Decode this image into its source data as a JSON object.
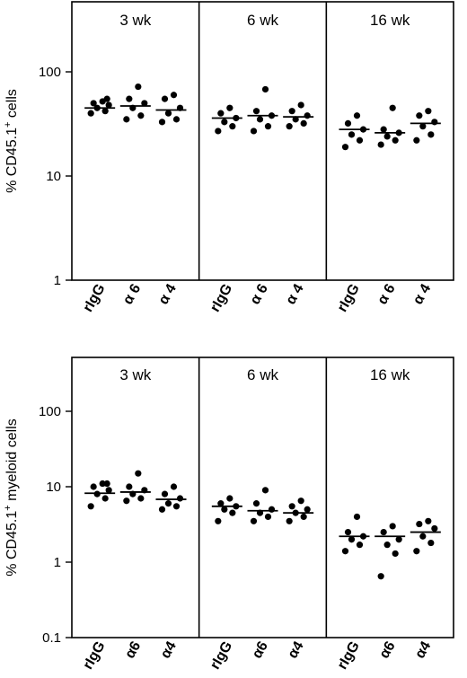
{
  "chart_data": [
    {
      "type": "scatter",
      "yscale": "log",
      "ylim": [
        1,
        400
      ],
      "yticks": [
        "1",
        "10",
        "100"
      ],
      "ylabel": "% CD45.1+ cells",
      "categories": [
        "rIgG",
        "α 6",
        "α 4"
      ],
      "panels": [
        {
          "label": "3 wk",
          "groups": [
            {
              "category": "rIgG",
              "mean": 45,
              "values": [
                40,
                42,
                45,
                48,
                50,
                52,
                55
              ]
            },
            {
              "category": "α 6",
              "mean": 47,
              "values": [
                35,
                38,
                45,
                50,
                55,
                72
              ]
            },
            {
              "category": "α 4",
              "mean": 43,
              "values": [
                33,
                35,
                40,
                45,
                55,
                60
              ]
            }
          ]
        },
        {
          "label": "6 wk",
          "groups": [
            {
              "category": "rIgG",
              "mean": 36,
              "values": [
                27,
                30,
                33,
                36,
                40,
                45
              ]
            },
            {
              "category": "α 6",
              "mean": 38,
              "values": [
                27,
                30,
                35,
                38,
                42,
                68
              ]
            },
            {
              "category": "α 4",
              "mean": 37,
              "values": [
                30,
                32,
                35,
                38,
                42,
                48
              ]
            }
          ]
        },
        {
          "label": "16 wk",
          "groups": [
            {
              "category": "rIgG",
              "mean": 28,
              "values": [
                19,
                22,
                25,
                28,
                32,
                38
              ]
            },
            {
              "category": "α 6",
              "mean": 26,
              "values": [
                20,
                22,
                24,
                26,
                28,
                45
              ]
            },
            {
              "category": "α 4",
              "mean": 32,
              "values": [
                22,
                25,
                30,
                33,
                38,
                42
              ]
            }
          ]
        }
      ]
    },
    {
      "type": "scatter",
      "yscale": "log",
      "ylim": [
        0.1,
        400
      ],
      "yticks": [
        "0.1",
        "1",
        "10",
        "100"
      ],
      "ylabel": "% CD45.1+ myeloid cells",
      "categories": [
        "rIgG",
        "α6",
        "α4"
      ],
      "panels": [
        {
          "label": "3 wk",
          "groups": [
            {
              "category": "rIgG",
              "mean": 8.2,
              "values": [
                5.5,
                7,
                8,
                9,
                10,
                11,
                11
              ]
            },
            {
              "category": "α6",
              "mean": 8.5,
              "values": [
                6.5,
                7,
                8,
                9,
                10,
                15
              ]
            },
            {
              "category": "α4",
              "mean": 6.8,
              "values": [
                5,
                5.5,
                6,
                7,
                8,
                10
              ]
            }
          ]
        },
        {
          "label": "6 wk",
          "groups": [
            {
              "category": "rIgG",
              "mean": 5.5,
              "values": [
                3.5,
                4.5,
                5,
                5.5,
                6,
                7
              ]
            },
            {
              "category": "α6",
              "mean": 4.8,
              "values": [
                3.5,
                4,
                4.5,
                5,
                6,
                9
              ]
            },
            {
              "category": "α4",
              "mean": 4.5,
              "values": [
                3.5,
                4,
                4.5,
                5,
                5.5,
                6.5
              ]
            }
          ]
        },
        {
          "label": "16 wk",
          "groups": [
            {
              "category": "rIgG",
              "mean": 2.2,
              "values": [
                1.4,
                1.7,
                2,
                2.2,
                2.5,
                4
              ]
            },
            {
              "category": "α6",
              "mean": 2.2,
              "values": [
                0.65,
                1.3,
                1.7,
                2,
                2.5,
                3
              ]
            },
            {
              "category": "α4",
              "mean": 2.5,
              "values": [
                1.4,
                1.8,
                2.2,
                2.8,
                3.2,
                3.5
              ]
            }
          ]
        }
      ]
    }
  ]
}
